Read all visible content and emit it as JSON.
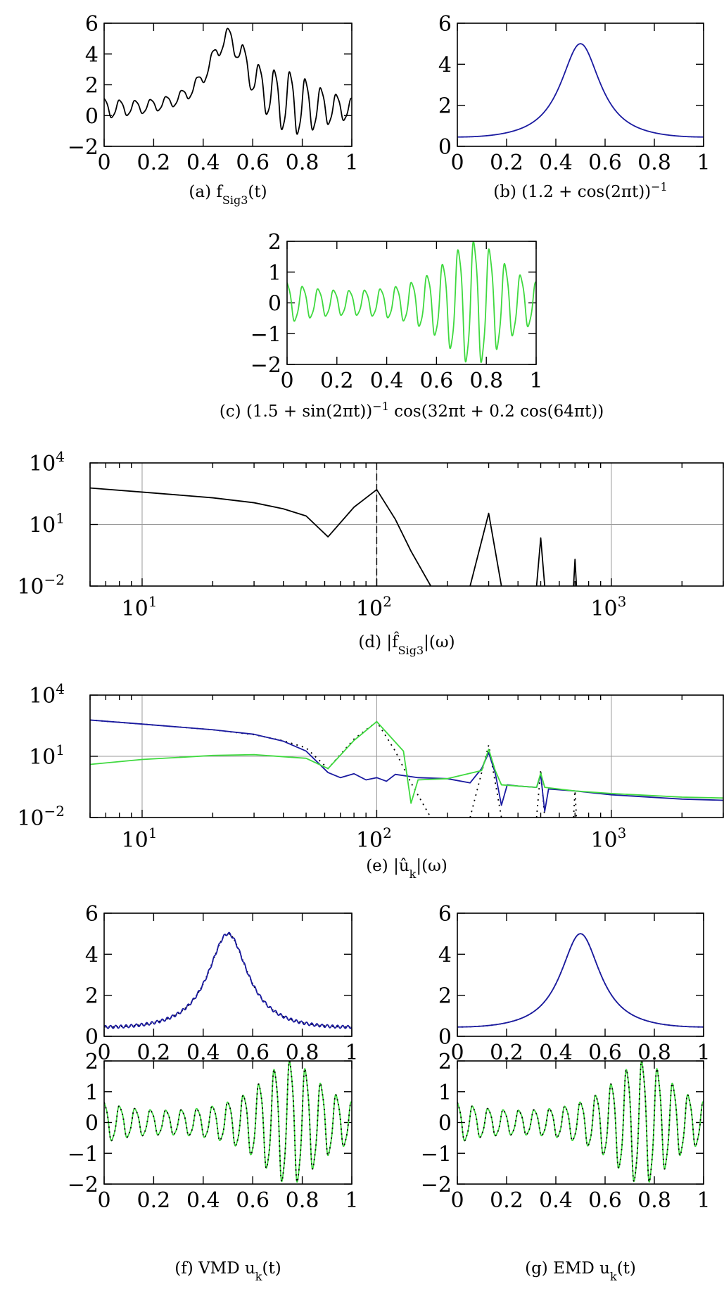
{
  "chart_data": [
    {
      "id": "a",
      "type": "line",
      "caption": "(a) f_Sig3(t)",
      "xlim": [
        0,
        1
      ],
      "ylim": [
        -2,
        6
      ],
      "xticks": [
        "0",
        "0.2",
        "0.4",
        "0.6",
        "0.8",
        "1"
      ],
      "yticks": [
        "−2",
        "0",
        "2",
        "4",
        "6"
      ],
      "grid": false,
      "series": [
        {
          "color": "#000000",
          "fn": "sig3"
        }
      ]
    },
    {
      "id": "b",
      "type": "line",
      "caption": "(b) (1.2 + cos(2πt))^−1",
      "xlim": [
        0,
        1
      ],
      "ylim": [
        0,
        6
      ],
      "xticks": [
        "0",
        "0.2",
        "0.4",
        "0.6",
        "0.8",
        "1"
      ],
      "yticks": [
        "0",
        "2",
        "4",
        "6"
      ],
      "grid": false,
      "series": [
        {
          "color": "#1a1aa0",
          "fn": "trend"
        }
      ]
    },
    {
      "id": "c",
      "type": "line",
      "caption": "(c) (1.5 + sin(2πt))^−1 cos(32πt + 0.2 cos(64πt))",
      "xlim": [
        0,
        1
      ],
      "ylim": [
        -2,
        2
      ],
      "xticks": [
        "0",
        "0.2",
        "0.4",
        "0.6",
        "0.8",
        "1"
      ],
      "yticks": [
        "−2",
        "−1",
        "0",
        "1",
        "2"
      ],
      "grid": false,
      "series": [
        {
          "color": "#3fd93f",
          "fn": "chirp"
        }
      ]
    },
    {
      "id": "d",
      "type": "line",
      "xscale": "log",
      "yscale": "log",
      "caption": "(d) |f̂_Sig3|(ω)",
      "xlim": [
        6,
        3000
      ],
      "ylim": [
        0.01,
        10000
      ],
      "xticks": [
        "10^1",
        "10^2",
        "10^3"
      ],
      "yticks": [
        "10^−2",
        "10^1",
        "10^4"
      ],
      "grid": true,
      "vline": 100,
      "series": [
        {
          "color": "#000000",
          "points": [
            [
              6,
              600
            ],
            [
              10,
              380
            ],
            [
              20,
              200
            ],
            [
              30,
              115
            ],
            [
              40,
              58
            ],
            [
              50,
              26
            ],
            [
              62,
              2.5
            ],
            [
              80,
              70
            ],
            [
              100,
              500
            ],
            [
              120,
              18
            ],
            [
              140,
              0.5
            ],
            [
              170,
              0.01
            ]
          ]
        },
        {
          "color": "#000000",
          "points": [
            [
              250,
              0.01
            ],
            [
              300,
              35
            ],
            [
              340,
              0.01
            ]
          ]
        },
        {
          "color": "#000000",
          "points": [
            [
              480,
              0.01
            ],
            [
              500,
              2.2
            ],
            [
              520,
              0.01
            ]
          ]
        },
        {
          "color": "#000000",
          "points": [
            [
              690,
              0.01
            ],
            [
              700,
              0.2
            ],
            [
              710,
              0.01
            ]
          ]
        }
      ]
    },
    {
      "id": "e",
      "type": "line",
      "xscale": "log",
      "yscale": "log",
      "caption": "(e) |û_k|(ω)",
      "xlim": [
        6,
        3000
      ],
      "ylim": [
        0.01,
        10000
      ],
      "xticks": [
        "10^1",
        "10^2",
        "10^3"
      ],
      "yticks": [
        "10^−2",
        "10^1",
        "10^4"
      ],
      "grid": true,
      "series": [
        {
          "color": "#000000",
          "dash": "2 6",
          "points": [
            [
              6,
              600
            ],
            [
              10,
              380
            ],
            [
              20,
              200
            ],
            [
              30,
              115
            ],
            [
              40,
              58
            ],
            [
              50,
              26
            ],
            [
              62,
              2.5
            ],
            [
              80,
              70
            ],
            [
              100,
              500
            ],
            [
              120,
              18
            ],
            [
              140,
              0.5
            ],
            [
              170,
              0.01
            ]
          ]
        },
        {
          "color": "#000000",
          "dash": "2 6",
          "points": [
            [
              250,
              0.01
            ],
            [
              300,
              35
            ],
            [
              340,
              0.01
            ]
          ]
        },
        {
          "color": "#000000",
          "dash": "2 6",
          "points": [
            [
              480,
              0.01
            ],
            [
              500,
              2.2
            ],
            [
              520,
              0.01
            ]
          ]
        },
        {
          "color": "#000000",
          "dash": "2 6",
          "points": [
            [
              690,
              0.01
            ],
            [
              700,
              0.2
            ],
            [
              710,
              0.01
            ]
          ]
        },
        {
          "color": "#1a1aa0",
          "points": [
            [
              6,
              600
            ],
            [
              10,
              380
            ],
            [
              20,
              200
            ],
            [
              30,
              120
            ],
            [
              40,
              55
            ],
            [
              50,
              18
            ],
            [
              62,
              1.6
            ],
            [
              70,
              0.9
            ],
            [
              80,
              1.4
            ],
            [
              90,
              0.7
            ],
            [
              100,
              0.9
            ],
            [
              110,
              0.6
            ],
            [
              120,
              1.3
            ],
            [
              150,
              0.9
            ],
            [
              200,
              0.8
            ],
            [
              250,
              0.5
            ],
            [
              280,
              2.5
            ],
            [
              300,
              15
            ],
            [
              320,
              1.5
            ],
            [
              340,
              0.04
            ],
            [
              360,
              0.4
            ],
            [
              400,
              0.35
            ],
            [
              480,
              0.3
            ],
            [
              500,
              1.2
            ],
            [
              520,
              0.02
            ],
            [
              540,
              0.25
            ],
            [
              700,
              0.2
            ],
            [
              1000,
              0.13
            ],
            [
              2000,
              0.08
            ],
            [
              3000,
              0.07
            ]
          ]
        },
        {
          "color": "#3fd93f",
          "points": [
            [
              6,
              4
            ],
            [
              10,
              7
            ],
            [
              20,
              11
            ],
            [
              30,
              12
            ],
            [
              50,
              8
            ],
            [
              62,
              2.5
            ],
            [
              80,
              60
            ],
            [
              100,
              500
            ],
            [
              130,
              18
            ],
            [
              140,
              0.05
            ],
            [
              150,
              0.7
            ],
            [
              200,
              0.8
            ],
            [
              280,
              2
            ],
            [
              300,
              22
            ],
            [
              320,
              2
            ],
            [
              340,
              0.4
            ],
            [
              480,
              0.3
            ],
            [
              500,
              1.5
            ],
            [
              520,
              0.3
            ],
            [
              700,
              0.2
            ],
            [
              1000,
              0.15
            ],
            [
              2000,
              0.1
            ],
            [
              3000,
              0.09
            ]
          ]
        }
      ]
    },
    {
      "id": "f_top",
      "type": "line",
      "xlim": [
        0,
        1
      ],
      "ylim": [
        0,
        6
      ],
      "xticks": [
        "0",
        "0.2",
        "0.4",
        "0.6",
        "0.8",
        "1"
      ],
      "yticks": [
        "0",
        "2",
        "4",
        "6"
      ],
      "grid": false,
      "series": [
        {
          "color": "#000000",
          "dash": "2 4",
          "fn": "trend"
        },
        {
          "color": "#1a1aa0",
          "fn": "trend_noisy"
        }
      ]
    },
    {
      "id": "g_top",
      "type": "line",
      "xlim": [
        0,
        1
      ],
      "ylim": [
        0,
        6
      ],
      "xticks": [
        "0",
        "0.2",
        "0.4",
        "0.6",
        "0.8",
        "1"
      ],
      "yticks": [
        "0",
        "2",
        "4",
        "6"
      ],
      "grid": false,
      "series": [
        {
          "color": "#000000",
          "dash": "2 4",
          "fn": "trend"
        },
        {
          "color": "#1a1aa0",
          "fn": "trend"
        }
      ]
    },
    {
      "id": "f_bot",
      "type": "line",
      "caption": "(f) VMD u_k(t)",
      "xlim": [
        0,
        1
      ],
      "ylim": [
        -2,
        2
      ],
      "xticks": [
        "0",
        "0.2",
        "0.4",
        "0.6",
        "0.8",
        "1"
      ],
      "yticks": [
        "−2",
        "−1",
        "0",
        "1",
        "2"
      ],
      "grid": false,
      "series": [
        {
          "color": "#3fd93f",
          "fn": "chirp"
        },
        {
          "color": "#000000",
          "dash": "2 5",
          "fn": "chirp"
        }
      ]
    },
    {
      "id": "g_bot",
      "type": "line",
      "caption": "(g) EMD u_k(t)",
      "xlim": [
        0,
        1
      ],
      "ylim": [
        -2,
        2
      ],
      "xticks": [
        "0",
        "0.2",
        "0.4",
        "0.6",
        "0.8",
        "1"
      ],
      "yticks": [
        "−2",
        "−1",
        "0",
        "1",
        "2"
      ],
      "grid": false,
      "series": [
        {
          "color": "#3fd93f",
          "fn": "chirp"
        },
        {
          "color": "#000000",
          "dash": "2 5",
          "fn": "chirp"
        }
      ]
    }
  ]
}
